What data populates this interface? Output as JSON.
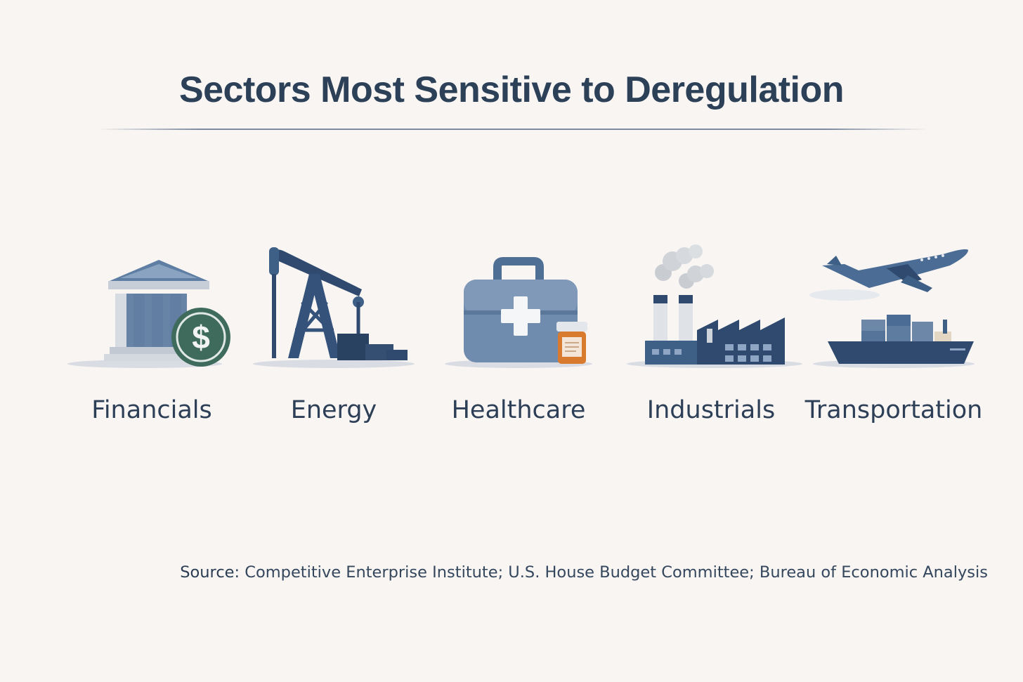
{
  "title": "Sectors Most Sensitive to Deregulation",
  "sectors": [
    {
      "label": "Financials",
      "icon": "bank-icon"
    },
    {
      "label": "Energy",
      "icon": "oil-pump-icon"
    },
    {
      "label": "Healthcare",
      "icon": "medical-kit-icon"
    },
    {
      "label": "Industrials",
      "icon": "factory-icon"
    },
    {
      "label": "Transportation",
      "icon": "plane-ship-icon"
    }
  ],
  "source": {
    "label": "Source:",
    "text": "Competitive Enterprise Institute; U.S. House Budget Committee; Bureau of Economic Analysis"
  },
  "colors": {
    "primary": "#3e5f86",
    "dark": "#2c4058",
    "accent_green": "#3f6b5d",
    "accent_orange": "#d97b2f",
    "background": "#f8f5f3"
  }
}
